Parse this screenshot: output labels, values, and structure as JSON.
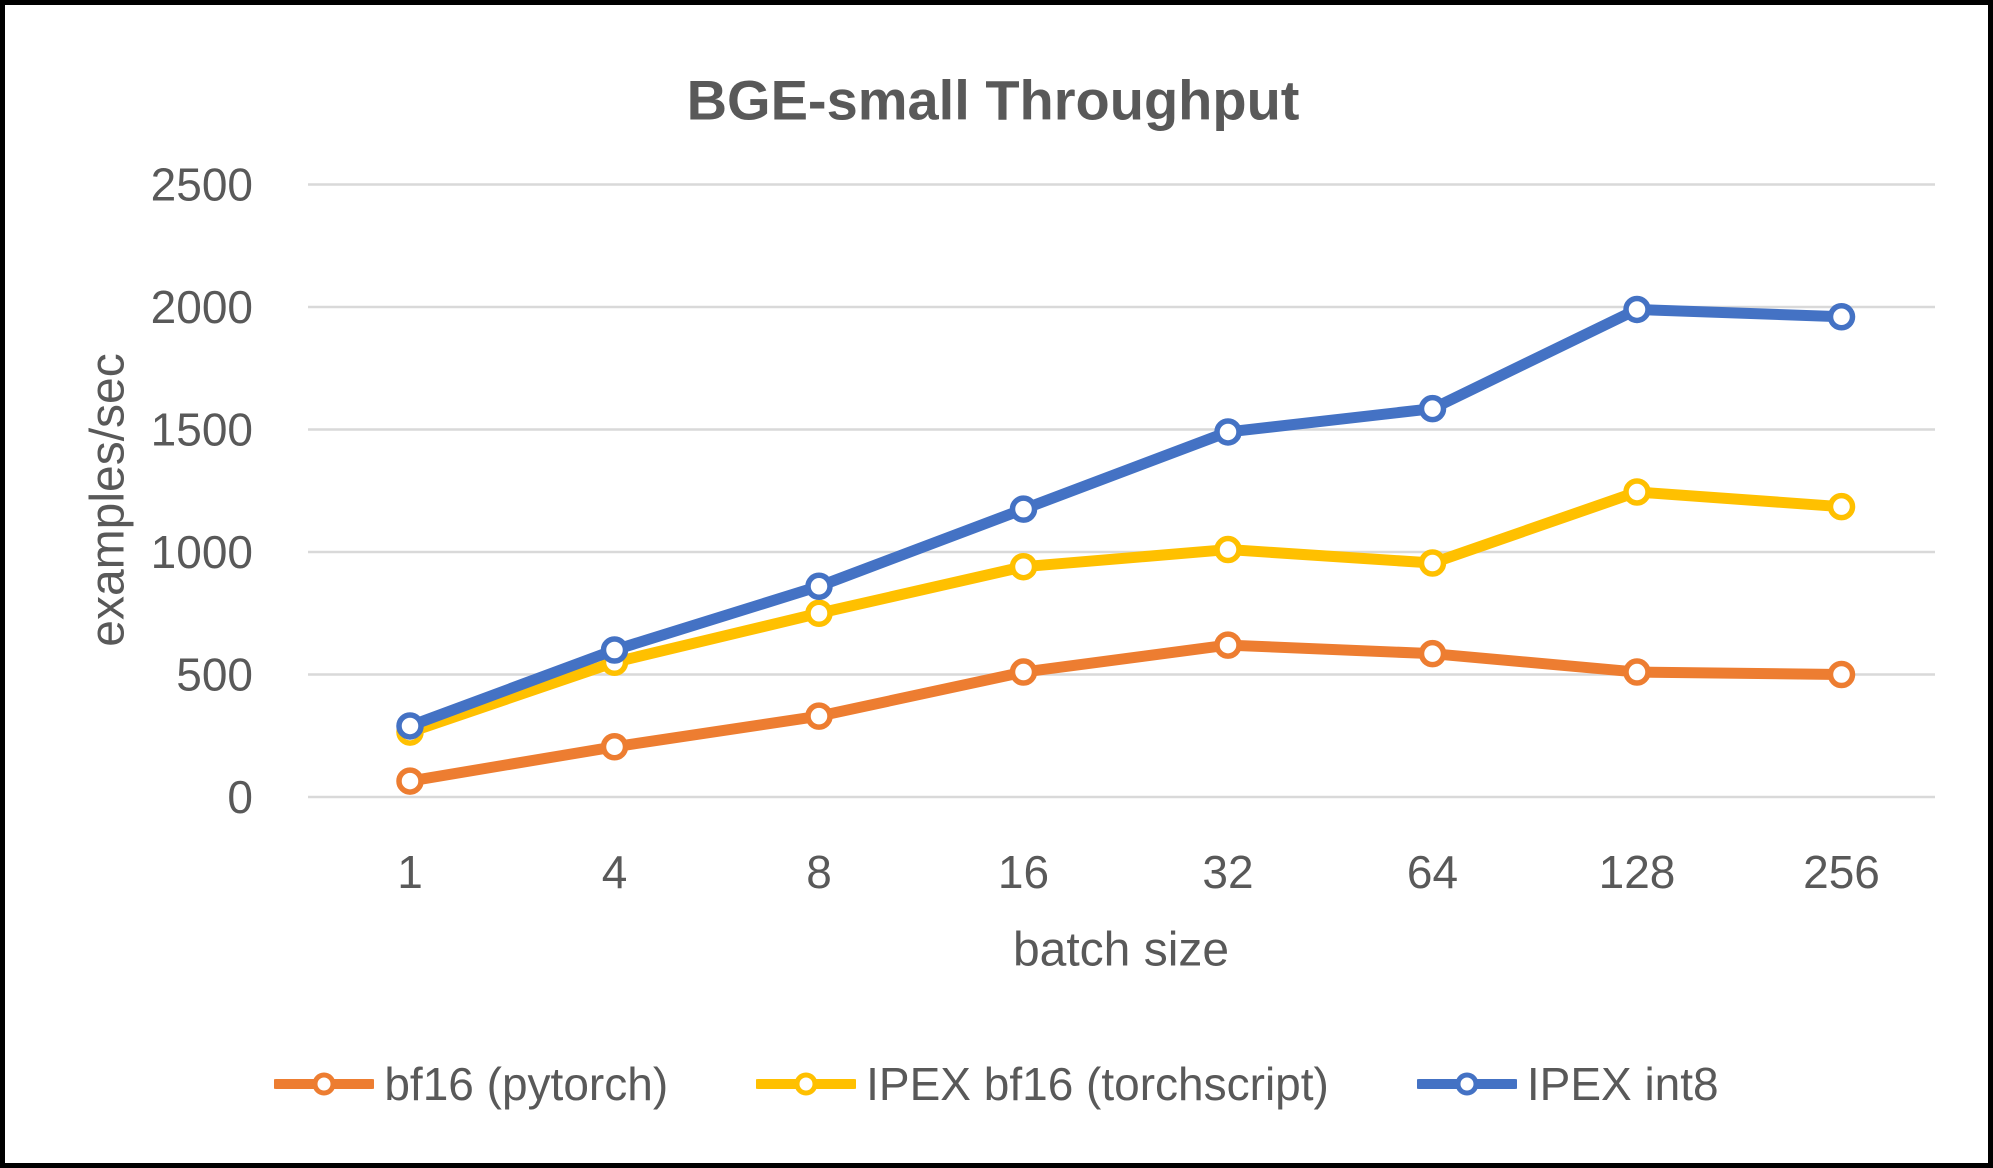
{
  "chart_data": {
    "type": "line",
    "title": "BGE-small Throughput",
    "xlabel": "batch size",
    "ylabel": "examples/sec",
    "categories": [
      "1",
      "4",
      "8",
      "16",
      "32",
      "64",
      "128",
      "256"
    ],
    "series": [
      {
        "name": "bf16 (pytorch)",
        "color": "#ED7D31",
        "values": [
          65,
          205,
          330,
          510,
          620,
          585,
          510,
          500
        ]
      },
      {
        "name": "IPEX bf16 (torchscript)",
        "color": "#FFC000",
        "values": [
          265,
          550,
          750,
          940,
          1010,
          955,
          1245,
          1185
        ]
      },
      {
        "name": "IPEX int8",
        "color": "#4472C4",
        "values": [
          290,
          600,
          860,
          1175,
          1490,
          1585,
          1990,
          1960
        ]
      }
    ],
    "y_ticks": [
      0,
      500,
      1000,
      1500,
      2000,
      2500
    ],
    "ylim": [
      0,
      2500
    ],
    "grid": true,
    "legend_position": "bottom",
    "marker": "open-circle",
    "colors": {
      "text": "#595959",
      "gridline": "#D9D9D9",
      "background": "#FFFFFF",
      "border": "#000000"
    }
  }
}
